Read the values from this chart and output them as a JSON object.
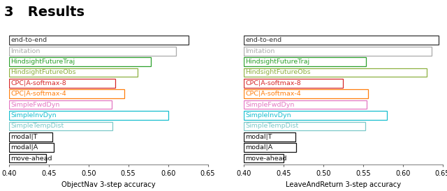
{
  "left_xlabel": "ObjectNav 3-step accuracy",
  "right_xlabel": "LeaveAndReturn 3-step accuracy",
  "xlim": [
    0.4,
    0.65
  ],
  "xticks": [
    0.4,
    0.45,
    0.5,
    0.55,
    0.6,
    0.65
  ],
  "categories": [
    "end-to-end",
    "Imitation",
    "HindsightFutureTraj",
    "HindsightFutureObs",
    "CPC|A-softmax-8",
    "CPC|A-softmax-4",
    "SimpleFwdDyn",
    "SimpleInvDyn",
    "SimpleTempDist",
    "modal|T",
    "modal|A",
    "move-ahead"
  ],
  "colors": [
    "#333333",
    "#aaaaaa",
    "#2ca02c",
    "#8db040",
    "#d62728",
    "#ff7f0e",
    "#e377c2",
    "#17becf",
    "#7ac8c8",
    "#111111",
    "#111111",
    "#111111"
  ],
  "left_values": [
    0.626,
    0.61,
    0.578,
    0.562,
    0.534,
    0.545,
    0.529,
    0.6,
    0.53,
    0.455,
    0.456,
    0.447
  ],
  "right_values": [
    0.645,
    0.636,
    0.554,
    0.63,
    0.525,
    0.556,
    0.555,
    0.58,
    0.553,
    0.465,
    0.466,
    0.45
  ],
  "bar_height": 0.82,
  "fontsize_label": 6.8,
  "fontsize_tick": 7.0,
  "fontsize_xlabel": 7.2,
  "title": "3   Results",
  "title_fontsize": 14
}
